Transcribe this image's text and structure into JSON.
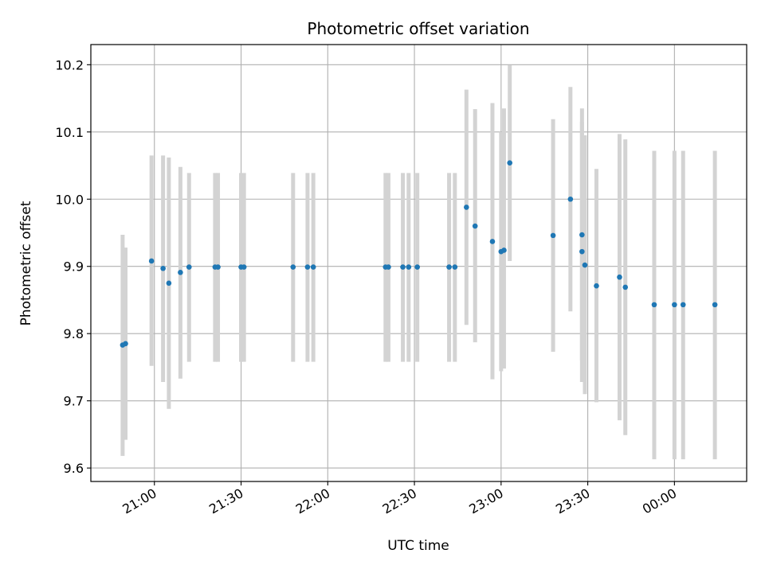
{
  "chart_data": {
    "type": "scatter",
    "title": "Photometric offset variation",
    "xlabel": "UTC time",
    "ylabel": "Photometric offset",
    "x_ticks": [
      "21:00",
      "21:30",
      "22:00",
      "22:30",
      "23:00",
      "23:30",
      "00:00"
    ],
    "y_ticks": [
      "9.6",
      "9.7",
      "9.8",
      "9.9",
      "10.0",
      "10.1",
      "10.2"
    ],
    "xlim": [
      "2000-01-01T20:38",
      "2000-01-02T00:25"
    ],
    "ylim": [
      9.58,
      10.23
    ],
    "grid": true,
    "colors": {
      "point": "#1f77b4",
      "errorbar": "#d3d3d3",
      "grid": "#b0b0b0"
    },
    "series": [
      {
        "points": [
          {
            "x": "2000-01-01T20:49",
            "y": 9.783,
            "lo": 9.618,
            "hi": 9.947
          },
          {
            "x": "2000-01-01T20:50",
            "y": 9.785,
            "lo": 9.642,
            "hi": 9.928
          },
          {
            "x": "2000-01-01T20:59",
            "y": 9.908,
            "lo": 9.752,
            "hi": 10.065
          },
          {
            "x": "2000-01-01T21:03",
            "y": 9.897,
            "lo": 9.728,
            "hi": 10.065
          },
          {
            "x": "2000-01-01T21:05",
            "y": 9.875,
            "lo": 9.688,
            "hi": 10.062
          },
          {
            "x": "2000-01-01T21:09",
            "y": 9.891,
            "lo": 9.733,
            "hi": 10.048
          },
          {
            "x": "2000-01-01T21:12",
            "y": 9.899,
            "lo": 9.758,
            "hi": 10.039
          },
          {
            "x": "2000-01-01T21:21",
            "y": 9.899,
            "lo": 9.758,
            "hi": 10.039
          },
          {
            "x": "2000-01-01T21:22",
            "y": 9.899,
            "lo": 9.758,
            "hi": 10.039
          },
          {
            "x": "2000-01-01T21:30",
            "y": 9.899,
            "lo": 9.758,
            "hi": 10.039
          },
          {
            "x": "2000-01-01T21:31",
            "y": 9.899,
            "lo": 9.758,
            "hi": 10.039
          },
          {
            "x": "2000-01-01T21:48",
            "y": 9.899,
            "lo": 9.758,
            "hi": 10.039
          },
          {
            "x": "2000-01-01T21:53",
            "y": 9.899,
            "lo": 9.758,
            "hi": 10.039
          },
          {
            "x": "2000-01-01T21:55",
            "y": 9.899,
            "lo": 9.758,
            "hi": 10.039
          },
          {
            "x": "2000-01-01T22:20",
            "y": 9.899,
            "lo": 9.758,
            "hi": 10.039
          },
          {
            "x": "2000-01-01T22:21",
            "y": 9.899,
            "lo": 9.758,
            "hi": 10.039
          },
          {
            "x": "2000-01-01T22:26",
            "y": 9.899,
            "lo": 9.758,
            "hi": 10.039
          },
          {
            "x": "2000-01-01T22:28",
            "y": 9.899,
            "lo": 9.758,
            "hi": 10.039
          },
          {
            "x": "2000-01-01T22:31",
            "y": 9.899,
            "lo": 9.758,
            "hi": 10.039
          },
          {
            "x": "2000-01-01T22:42",
            "y": 9.899,
            "lo": 9.758,
            "hi": 10.039
          },
          {
            "x": "2000-01-01T22:44",
            "y": 9.899,
            "lo": 9.758,
            "hi": 10.039
          },
          {
            "x": "2000-01-01T22:48",
            "y": 9.988,
            "lo": 9.813,
            "hi": 10.163
          },
          {
            "x": "2000-01-01T22:51",
            "y": 9.96,
            "lo": 9.787,
            "hi": 10.134
          },
          {
            "x": "2000-01-01T22:57",
            "y": 9.937,
            "lo": 9.732,
            "hi": 10.143
          },
          {
            "x": "2000-01-01T23:00",
            "y": 9.922,
            "lo": 9.744,
            "hi": 10.1
          },
          {
            "x": "2000-01-01T23:01",
            "y": 9.924,
            "lo": 9.748,
            "hi": 10.135
          },
          {
            "x": "2000-01-01T23:03",
            "y": 10.054,
            "lo": 9.908,
            "hi": 10.199
          },
          {
            "x": "2000-01-01T23:18",
            "y": 9.946,
            "lo": 9.773,
            "hi": 10.119
          },
          {
            "x": "2000-01-01T23:24",
            "y": 10.0,
            "lo": 9.833,
            "hi": 10.167
          },
          {
            "x": "2000-01-01T23:28",
            "y": 9.922,
            "lo": 9.728,
            "hi": 10.115
          },
          {
            "x": "2000-01-01T23:28",
            "y": 9.947,
            "lo": 9.76,
            "hi": 10.135
          },
          {
            "x": "2000-01-01T23:29",
            "y": 9.902,
            "lo": 9.71,
            "hi": 10.095
          },
          {
            "x": "2000-01-01T23:33",
            "y": 9.871,
            "lo": 9.698,
            "hi": 10.045
          },
          {
            "x": "2000-01-01T23:41",
            "y": 9.884,
            "lo": 9.671,
            "hi": 10.097
          },
          {
            "x": "2000-01-01T23:43",
            "y": 9.869,
            "lo": 9.649,
            "hi": 10.089
          },
          {
            "x": "2000-01-01T23:53",
            "y": 9.843,
            "lo": 9.613,
            "hi": 10.072
          },
          {
            "x": "2000-01-02T00:00",
            "y": 9.843,
            "lo": 9.613,
            "hi": 10.072
          },
          {
            "x": "2000-01-02T00:03",
            "y": 9.843,
            "lo": 9.613,
            "hi": 10.072
          },
          {
            "x": "2000-01-02T00:14",
            "y": 9.843,
            "lo": 9.613,
            "hi": 10.072
          }
        ]
      }
    ]
  }
}
